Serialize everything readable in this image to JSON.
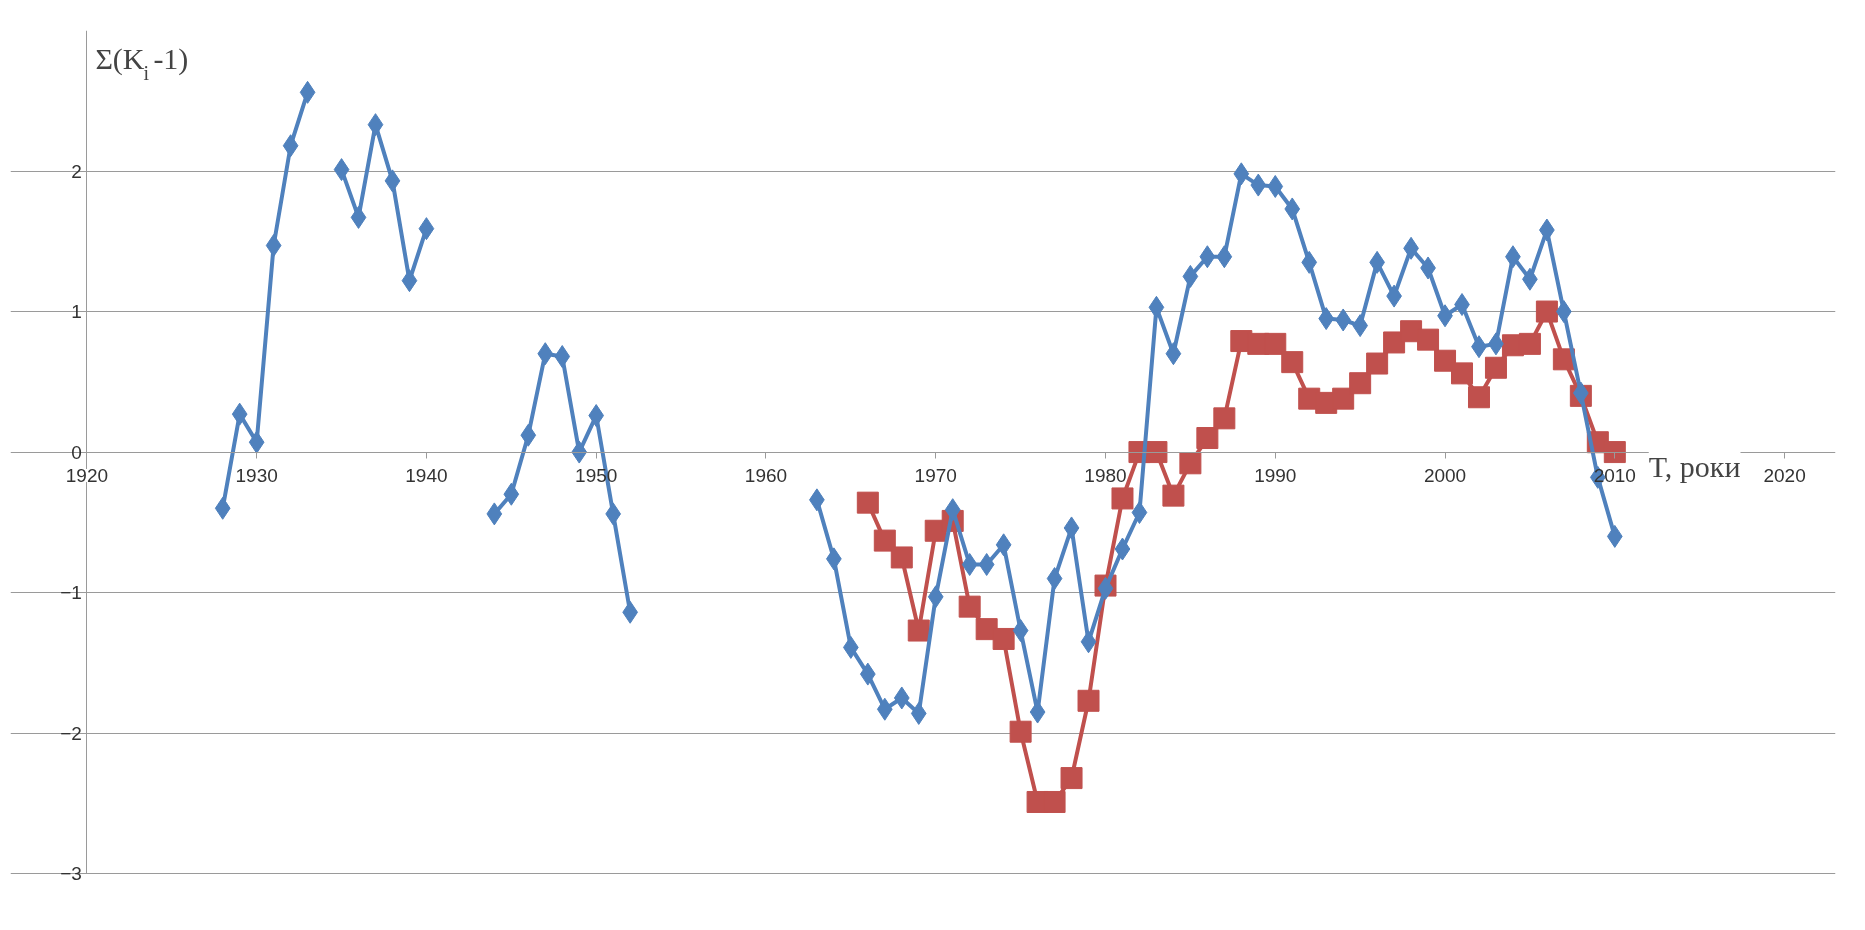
{
  "chart_data": {
    "type": "line",
    "xlabel": "T, роки",
    "ylabel": "Σ(K$_{i}$-1)",
    "x": [
      1928,
      1929,
      1930,
      1931,
      1932,
      1933,
      1934,
      1935,
      1936,
      1937,
      1938,
      1939,
      1940,
      1941,
      1942,
      1943,
      1944,
      1945,
      1946,
      1947,
      1948,
      1949,
      1950,
      1951,
      1952,
      1953,
      1954,
      1955,
      1956,
      1957,
      1958,
      1959,
      1960,
      1961,
      1962,
      1963,
      1964,
      1965,
      1966,
      1967,
      1968,
      1969,
      1970,
      1971,
      1972,
      1973,
      1974,
      1975,
      1976,
      1977,
      1978,
      1979,
      1980,
      1981,
      1982,
      1983,
      1984,
      1985,
      1986,
      1987,
      1988,
      1989,
      1990,
      1991,
      1992,
      1993,
      1994,
      1995,
      1996,
      1997,
      1998,
      1999,
      2000,
      2001,
      2002,
      2003,
      2004,
      2005,
      2006,
      2007,
      2008,
      2009,
      2010
    ],
    "series": [
      {
        "color": "#4f81bd",
        "marker": "diamond",
        "values": [
          -0.4,
          0.27,
          0.07,
          1.47,
          2.18,
          2.56,
          null,
          2.01,
          1.67,
          2.33,
          1.93,
          1.22,
          1.59,
          null,
          null,
          null,
          -0.44,
          -0.3,
          0.12,
          0.7,
          0.68,
          0.0,
          0.26,
          -0.44,
          -1.14,
          null,
          null,
          null,
          null,
          null,
          null,
          null,
          null,
          null,
          null,
          -0.34,
          -0.76,
          -1.39,
          -1.58,
          -1.83,
          -1.75,
          -1.86,
          -1.03,
          -0.41,
          -0.8,
          -0.8,
          -0.66,
          -1.27,
          -1.85,
          -0.9,
          -0.54,
          -1.35,
          -0.97,
          -0.69,
          -0.43,
          1.03,
          0.7,
          1.25,
          1.39,
          1.39,
          1.98,
          1.9,
          1.89,
          1.73,
          1.35,
          0.95,
          0.94,
          0.9,
          1.35,
          1.11,
          1.45,
          1.31,
          0.97,
          1.05,
          0.75,
          0.77,
          1.39,
          1.23,
          1.58,
          1.0,
          0.42,
          -0.18,
          -0.6
        ]
      },
      {
        "color": "#c0504d",
        "marker": "square",
        "values": [
          null,
          null,
          null,
          null,
          null,
          null,
          null,
          null,
          null,
          null,
          null,
          null,
          null,
          null,
          null,
          null,
          null,
          null,
          null,
          null,
          null,
          null,
          null,
          null,
          null,
          null,
          null,
          null,
          null,
          null,
          null,
          null,
          null,
          null,
          null,
          null,
          null,
          null,
          -0.36,
          -0.63,
          -0.75,
          -1.27,
          -0.56,
          -0.49,
          -1.1,
          -1.26,
          -1.33,
          -1.99,
          -2.49,
          -2.49,
          -2.32,
          -1.77,
          -0.95,
          -0.33,
          0.0,
          0.0,
          -0.31,
          -0.08,
          0.1,
          0.24,
          0.79,
          0.77,
          0.77,
          0.64,
          0.38,
          0.35,
          0.38,
          0.49,
          0.63,
          0.78,
          0.86,
          0.8,
          0.65,
          0.56,
          0.39,
          0.6,
          0.76,
          0.77,
          1.0,
          0.66,
          0.4,
          0.07,
          0.0
        ]
      }
    ],
    "xlim": [
      1920,
      2020
    ],
    "xticks": [
      1920,
      1930,
      1940,
      1950,
      1960,
      1970,
      1980,
      1990,
      2000,
      2010,
      2020
    ],
    "ylim": [
      -3,
      3
    ],
    "yticks": [
      -3,
      -2,
      -1,
      0,
      1,
      2
    ],
    "grid": "y",
    "line_style": "solid"
  }
}
